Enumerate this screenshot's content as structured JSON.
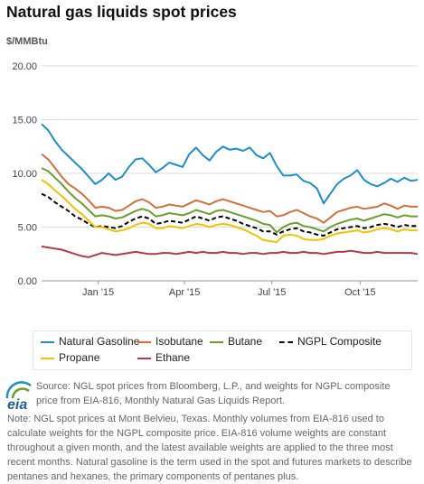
{
  "title": "Natural gas liquids spot prices",
  "unit_label": "$/MMBtu",
  "source_text": "Source: NGL spot prices from Bloomberg, L.P., and weights for NGPL composite price from EIA-816, Monthly Natural Gas Liquids Report.",
  "note_text": "Note: NGL spot prices at Mont Belvieu, Texas. Monthly volumes from EIA-816 used to calculate weights for the NGPL composite price. EIA-816 volume weights are constant throughout a given month, and the latest available weights are applied to the three most recent months. Natural gasoline is the term used in the spot and futures markets to describe pentanes and hexanes, the primary components of pentanes plus.",
  "logo_text": "eia",
  "chart_data": {
    "type": "line",
    "x_type": "date",
    "xlim": [
      "2014-11-03",
      "2015-11-30"
    ],
    "ylim": [
      0,
      20
    ],
    "y_ticks": [
      "0.00",
      "5.00",
      "10.00",
      "15.00",
      "20.00"
    ],
    "x_ticks": [
      {
        "label": "Jan '15",
        "date": "2015-01-01"
      },
      {
        "label": "Apr '15",
        "date": "2015-04-01"
      },
      {
        "label": "Jul '15",
        "date": "2015-07-01"
      },
      {
        "label": "Oct '15",
        "date": "2015-10-01"
      }
    ],
    "grid": "horizontal",
    "legend_position": "bottom",
    "x": [
      "2014-11-03",
      "2014-11-10",
      "2014-11-17",
      "2014-11-24",
      "2014-12-01",
      "2014-12-08",
      "2014-12-15",
      "2014-12-22",
      "2014-12-29",
      "2015-01-05",
      "2015-01-12",
      "2015-01-19",
      "2015-01-26",
      "2015-02-02",
      "2015-02-09",
      "2015-02-16",
      "2015-02-23",
      "2015-03-02",
      "2015-03-09",
      "2015-03-16",
      "2015-03-23",
      "2015-03-30",
      "2015-04-06",
      "2015-04-13",
      "2015-04-20",
      "2015-04-27",
      "2015-05-04",
      "2015-05-11",
      "2015-05-18",
      "2015-05-25",
      "2015-06-01",
      "2015-06-08",
      "2015-06-15",
      "2015-06-22",
      "2015-06-29",
      "2015-07-06",
      "2015-07-13",
      "2015-07-20",
      "2015-07-27",
      "2015-08-03",
      "2015-08-10",
      "2015-08-17",
      "2015-08-24",
      "2015-08-31",
      "2015-09-07",
      "2015-09-14",
      "2015-09-21",
      "2015-09-28",
      "2015-10-05",
      "2015-10-12",
      "2015-10-19",
      "2015-10-26",
      "2015-11-02",
      "2015-11-09",
      "2015-11-16",
      "2015-11-23",
      "2015-11-30"
    ],
    "series": [
      {
        "name": "Natural Gasoline",
        "color": "#1f8fc8",
        "dash": "",
        "values": [
          14.6,
          14.0,
          13.0,
          12.2,
          11.6,
          11.0,
          10.4,
          9.7,
          9.0,
          9.4,
          10.0,
          9.4,
          9.7,
          10.6,
          11.3,
          11.4,
          10.8,
          10.1,
          10.5,
          11.0,
          10.8,
          10.6,
          11.8,
          12.4,
          11.7,
          11.2,
          12.0,
          12.5,
          12.2,
          12.3,
          12.1,
          12.4,
          11.7,
          11.4,
          11.9,
          10.7,
          9.8,
          9.8,
          9.9,
          9.3,
          9.1,
          8.6,
          7.2,
          8.1,
          9.0,
          9.5,
          9.8,
          10.3,
          9.4,
          9.0,
          8.8,
          9.1,
          9.5,
          9.2,
          9.6,
          9.3,
          9.4
        ]
      },
      {
        "name": "Isobutane",
        "color": "#d6703b",
        "dash": "",
        "values": [
          11.8,
          11.3,
          10.5,
          9.7,
          9.0,
          8.6,
          8.1,
          7.5,
          6.8,
          6.9,
          6.8,
          6.5,
          6.6,
          7.0,
          7.4,
          7.6,
          7.3,
          6.8,
          6.9,
          7.1,
          7.0,
          6.9,
          7.2,
          7.5,
          7.3,
          7.1,
          7.4,
          7.6,
          7.4,
          7.2,
          7.0,
          6.8,
          6.6,
          6.4,
          6.5,
          6.0,
          6.1,
          6.4,
          6.6,
          6.3,
          6.0,
          5.8,
          5.4,
          5.9,
          6.4,
          6.6,
          6.8,
          6.9,
          6.7,
          6.8,
          6.9,
          7.2,
          7.0,
          6.7,
          7.0,
          6.9,
          6.9
        ]
      },
      {
        "name": "Butane",
        "color": "#6b9e2f",
        "dash": "",
        "values": [
          10.5,
          10.2,
          9.6,
          9.0,
          8.3,
          7.7,
          7.2,
          6.6,
          6.0,
          6.1,
          6.0,
          5.8,
          5.9,
          6.2,
          6.5,
          6.7,
          6.5,
          6.0,
          6.1,
          6.3,
          6.2,
          6.1,
          6.3,
          6.6,
          6.4,
          6.2,
          6.5,
          6.6,
          6.4,
          6.2,
          6.0,
          5.8,
          5.6,
          5.3,
          5.2,
          4.5,
          5.0,
          5.3,
          5.4,
          5.1,
          5.0,
          4.8,
          4.6,
          5.0,
          5.3,
          5.5,
          5.7,
          5.8,
          5.6,
          5.8,
          6.0,
          6.2,
          6.1,
          5.9,
          6.1,
          6.0,
          6.0
        ]
      },
      {
        "name": "NGPL Composite",
        "color": "#000000",
        "dash": "5,3",
        "values": [
          8.1,
          7.8,
          7.3,
          6.9,
          6.5,
          6.0,
          5.7,
          5.3,
          5.0,
          5.1,
          5.0,
          4.9,
          5.1,
          5.5,
          5.8,
          6.0,
          5.8,
          5.3,
          5.4,
          5.6,
          5.5,
          5.4,
          5.7,
          6.0,
          5.8,
          5.6,
          5.9,
          6.0,
          5.8,
          5.6,
          5.3,
          5.1,
          4.9,
          4.6,
          4.6,
          4.3,
          4.6,
          4.8,
          4.9,
          4.6,
          4.5,
          4.3,
          4.2,
          4.5,
          4.8,
          4.9,
          5.0,
          5.1,
          4.9,
          5.0,
          5.2,
          5.3,
          5.2,
          5.0,
          5.2,
          5.1,
          5.1
        ]
      },
      {
        "name": "Propane",
        "color": "#f2c300",
        "dash": "",
        "values": [
          9.4,
          9.0,
          8.4,
          7.9,
          7.3,
          6.7,
          6.2,
          5.6,
          5.0,
          5.0,
          4.8,
          4.6,
          4.7,
          4.9,
          5.2,
          5.4,
          5.3,
          4.9,
          4.9,
          5.1,
          5.0,
          4.9,
          5.1,
          5.3,
          5.2,
          5.0,
          5.2,
          5.3,
          5.2,
          5.0,
          4.8,
          4.5,
          4.2,
          3.8,
          3.7,
          3.6,
          4.2,
          4.3,
          4.2,
          3.9,
          3.8,
          3.8,
          3.9,
          4.2,
          4.4,
          4.5,
          4.6,
          4.7,
          4.5,
          4.6,
          4.8,
          4.9,
          4.8,
          4.6,
          4.8,
          4.7,
          4.7
        ]
      },
      {
        "name": "Ethane",
        "color": "#b03a48",
        "dash": "",
        "values": [
          3.2,
          3.1,
          3.0,
          2.9,
          2.7,
          2.5,
          2.3,
          2.2,
          2.4,
          2.6,
          2.5,
          2.4,
          2.5,
          2.6,
          2.7,
          2.6,
          2.5,
          2.5,
          2.6,
          2.6,
          2.5,
          2.6,
          2.7,
          2.6,
          2.7,
          2.6,
          2.6,
          2.7,
          2.6,
          2.6,
          2.5,
          2.6,
          2.6,
          2.5,
          2.6,
          2.6,
          2.7,
          2.6,
          2.6,
          2.7,
          2.6,
          2.6,
          2.5,
          2.6,
          2.7,
          2.7,
          2.8,
          2.7,
          2.6,
          2.6,
          2.7,
          2.6,
          2.6,
          2.6,
          2.6,
          2.6,
          2.5
        ]
      }
    ]
  }
}
